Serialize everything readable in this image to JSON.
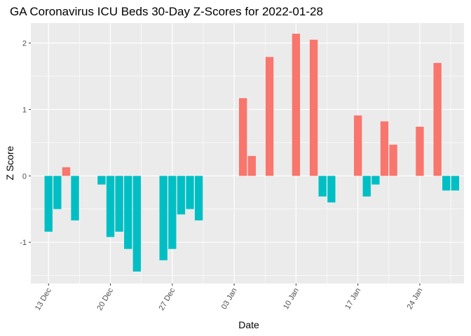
{
  "chart_data": {
    "type": "bar",
    "title": "GA Coronavirus ICU Beds 30-Day Z-Scores for 2022-01-28",
    "xlabel": "Date",
    "ylabel": "Z Score",
    "x_tick_labels": [
      "13 Dec",
      "20 Dec",
      "27 Dec",
      "03 Jan",
      "10 Jan",
      "17 Jan",
      "24 Jan"
    ],
    "y_tick_labels": [
      "-1",
      "0",
      "1",
      "2"
    ],
    "x_tick_dates": [
      "2021-12-13",
      "2021-12-20",
      "2021-12-27",
      "2022-01-03",
      "2022-01-10",
      "2022-01-17",
      "2022-01-24"
    ],
    "y_ticks": [
      -1,
      0,
      1,
      2
    ],
    "xlim": [
      "2021-12-11",
      "2022-01-29"
    ],
    "ylim": [
      -1.62,
      2.3
    ],
    "grid": true,
    "legend": "none",
    "colors": {
      "positive": "#F8766D",
      "negative": "#00BFC4",
      "panel": "#EBEBEB",
      "grid": "#FFFFFF"
    },
    "bars": [
      {
        "date": "2021-12-13",
        "value": -0.84
      },
      {
        "date": "2021-12-14",
        "value": -0.5
      },
      {
        "date": "2021-12-15",
        "value": 0.13
      },
      {
        "date": "2021-12-16",
        "value": -0.67
      },
      {
        "date": "2021-12-19",
        "value": -0.13
      },
      {
        "date": "2021-12-20",
        "value": -0.92
      },
      {
        "date": "2021-12-21",
        "value": -0.84
      },
      {
        "date": "2021-12-22",
        "value": -1.1
      },
      {
        "date": "2021-12-23",
        "value": -1.44
      },
      {
        "date": "2021-12-26",
        "value": -1.27
      },
      {
        "date": "2021-12-27",
        "value": -1.1
      },
      {
        "date": "2021-12-28",
        "value": -0.58
      },
      {
        "date": "2021-12-29",
        "value": -0.5
      },
      {
        "date": "2021-12-30",
        "value": -0.67
      },
      {
        "date": "2022-01-04",
        "value": 1.17
      },
      {
        "date": "2022-01-05",
        "value": 0.3
      },
      {
        "date": "2022-01-07",
        "value": 1.79
      },
      {
        "date": "2022-01-10",
        "value": 2.14
      },
      {
        "date": "2022-01-12",
        "value": 2.05
      },
      {
        "date": "2022-01-13",
        "value": -0.31
      },
      {
        "date": "2022-01-14",
        "value": -0.4
      },
      {
        "date": "2022-01-17",
        "value": 0.91
      },
      {
        "date": "2022-01-18",
        "value": -0.31
      },
      {
        "date": "2022-01-19",
        "value": -0.13
      },
      {
        "date": "2022-01-20",
        "value": 0.82
      },
      {
        "date": "2022-01-21",
        "value": 0.47
      },
      {
        "date": "2022-01-24",
        "value": 0.74
      },
      {
        "date": "2022-01-26",
        "value": 1.7
      },
      {
        "date": "2022-01-27",
        "value": -0.22
      },
      {
        "date": "2022-01-28",
        "value": -0.22
      }
    ]
  }
}
